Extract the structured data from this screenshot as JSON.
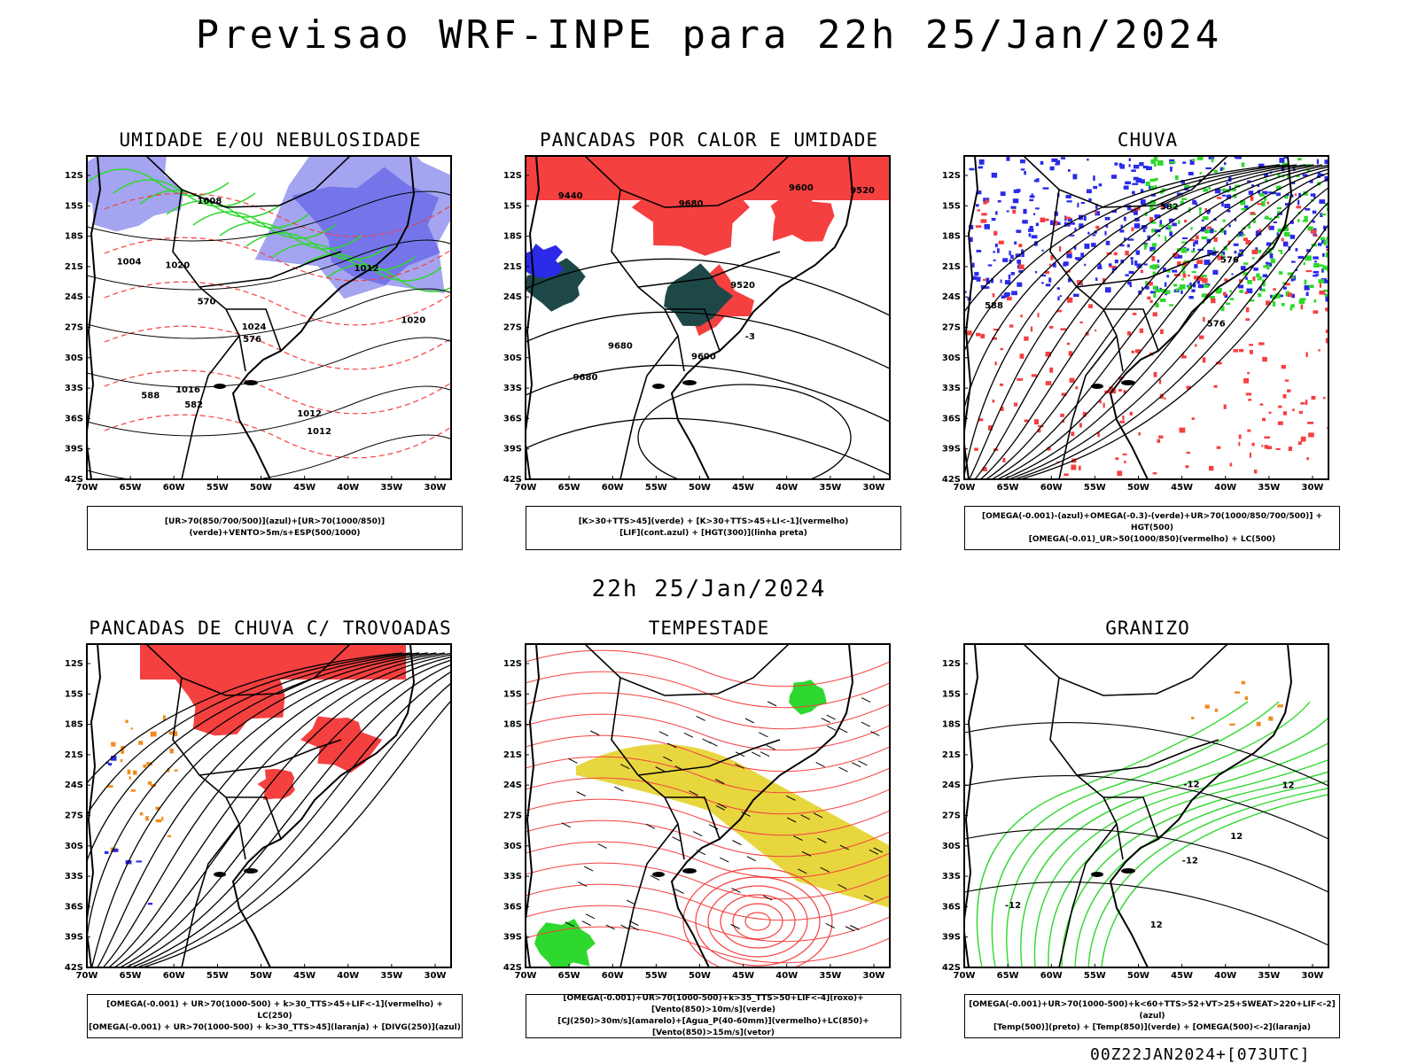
{
  "header": {
    "title": "Previsao WRF-INPE  para 22h 25/Jan/2024",
    "mid_title": "22h 25/Jan/2024",
    "footer": "00Z22JAN2024+[073UTC]"
  },
  "axes": {
    "lat_labels": [
      "12S",
      "15S",
      "18S",
      "21S",
      "24S",
      "27S",
      "30S",
      "33S",
      "36S",
      "39S",
      "42S"
    ],
    "lon_labels": [
      "70W",
      "65W",
      "60W",
      "55W",
      "50W",
      "45W",
      "40W",
      "35W",
      "30W"
    ]
  },
  "panels": [
    {
      "title": "UMIDADE E/OU NEBULOSIDADE",
      "legend": [
        "[UR>70(850/700/500)](azul)+[UR>70(1000/850)](verde)+VENTO>5m/s+ESP(500/1000)"
      ],
      "map_labels": [
        "1012",
        "1008",
        "1016",
        "1020",
        "1012",
        "1012",
        "1020",
        "570",
        "576",
        "582",
        "588",
        "1004",
        "1024"
      ]
    },
    {
      "title": "PANCADAS POR CALOR E UMIDADE",
      "legend": [
        "[K>30+TTS>45](verde) + [K>30+TTS>45+LI<-1](vermelho)",
        "[LIF](cont.azul) + [HGT(300)](linha preta)"
      ],
      "map_labels": [
        "9680",
        "9680",
        "9600",
        "9520",
        "9440",
        "9600",
        "9520",
        "9680",
        "-3"
      ]
    },
    {
      "title": "CHUVA",
      "legend": [
        "[OMEGA(-0.001)-(azul)+OMEGA(-0.3)-(verde)+UR>70(1000/850/700/500)] + HGT(500)",
        "[OMEGA(-0.01)_UR>50(1000/850)(vermelho) + LC(500)"
      ],
      "map_labels": [
        "576",
        "582",
        "576",
        "588"
      ]
    },
    {
      "title": "PANCADAS DE CHUVA C/ TROVOADAS",
      "legend": [
        "[OMEGA(-0.001) + UR>70(1000-500) + k>30_TTS>45+LIF<-1](vermelho) + LC(250)",
        "[OMEGA(-0.001) + UR>70(1000-500) + k>30_TTS>45](laranja) + [DIVG(250)](azul)"
      ],
      "map_labels": []
    },
    {
      "title": "TEMPESTADE",
      "legend": [
        "[OMEGA(-0.001)+UR>70(1000-500)+k>35_TTS>50+LIF<-4](roxo)+[Vento(850)>10m/s](verde)",
        "[CJ(250)>30m/s](amarelo)+[Agua_P(40-60mm)](vermelho)+LC(850)+[Vento(850)>15m/s](vetor)"
      ],
      "map_labels": []
    },
    {
      "title": "GRANIZO",
      "legend": [
        "[OMEGA(-0.001)+UR>70(1000-500)+k<60+TTS>52+VT>25+SWEAT>220+LIF<-2](azul)",
        "[Temp(500)](preto) + [Temp(850)](verde) + [OMEGA(500)<-2](laranja)"
      ],
      "map_labels": [
        "-12",
        "-12",
        "12",
        "-12",
        "12",
        "12"
      ]
    }
  ],
  "colors": {
    "red": "#f54040",
    "blue": "#2a2ae8",
    "lightblue": "#9a9af0",
    "purple": "#7070e8",
    "green": "#2ed82e",
    "darkteal": "#1e4848",
    "yellow": "#e6d22a",
    "orange": "#f08a1e"
  }
}
